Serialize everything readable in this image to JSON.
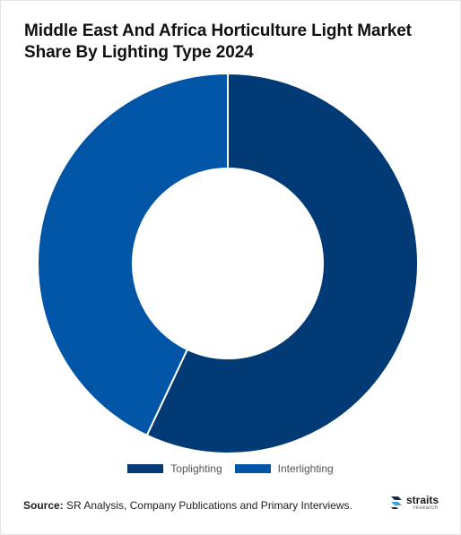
{
  "title": "Middle East And Africa Horticulture Light Market Share By Lighting Type 2024",
  "source": {
    "label": "Source:",
    "text": "SR Analysis, Company Publications and Primary Interviews."
  },
  "logo": {
    "main": "straits",
    "sub": "research"
  },
  "colors": {
    "toplighting": "#013a75",
    "interlighting": "#0055a6"
  },
  "chart_data": {
    "type": "pie",
    "variant": "donut",
    "title": "Middle East And Africa Horticulture Light Market Share By Lighting Type 2024",
    "start_angle_deg": 0,
    "direction": "clockwise",
    "series": [
      {
        "name": "Toplighting",
        "value": 57,
        "color": "#013a75"
      },
      {
        "name": "Interlighting",
        "value": 43,
        "color": "#0055a6"
      }
    ],
    "legend_position": "bottom"
  }
}
